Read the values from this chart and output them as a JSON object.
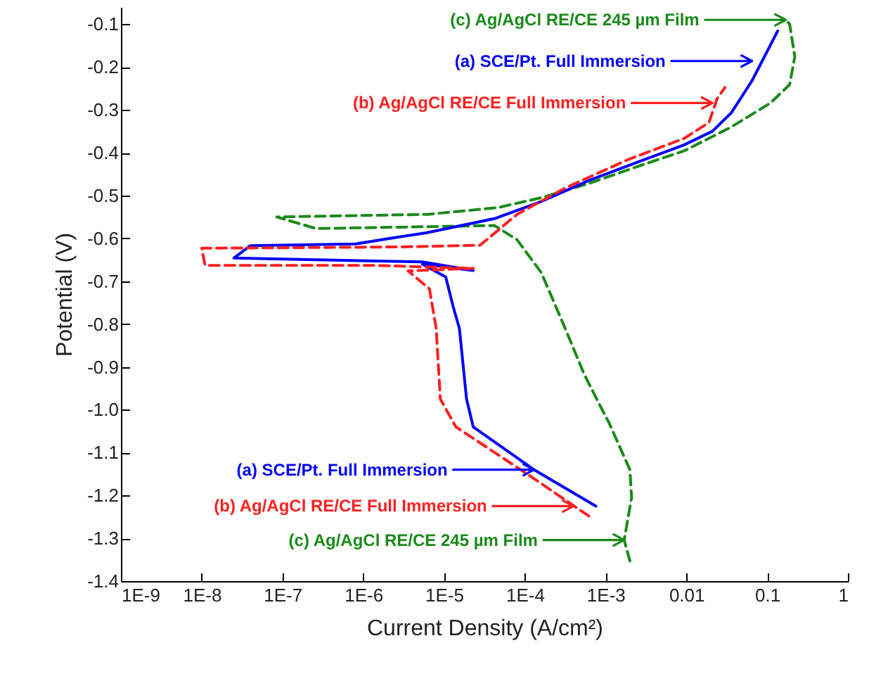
{
  "chart_data": {
    "type": "line",
    "xlabel": "Current Density (A/cm²)",
    "ylabel": "Potential (V)",
    "log": "x",
    "xlim": [
      1e-09,
      1
    ],
    "ylim": [
      -1.4,
      -0.06
    ],
    "xticks": [
      {
        "value": 1e-09,
        "label": "1E-9"
      },
      {
        "value": 1e-08,
        "label": "1E-8"
      },
      {
        "value": 1e-07,
        "label": "1E-7"
      },
      {
        "value": 1e-06,
        "label": "1E-6"
      },
      {
        "value": 1e-05,
        "label": "1E-5"
      },
      {
        "value": 0.0001,
        "label": "1E-4"
      },
      {
        "value": 0.001,
        "label": "1E-3"
      },
      0.01,
      0.1,
      1
    ],
    "yticks": [
      -0.1,
      -0.2,
      -0.3,
      -0.4,
      -0.5,
      -0.6,
      -0.7,
      -0.8,
      -0.9,
      {
        "value": -1.0,
        "label": "-1.0"
      },
      -1.1,
      -1.2,
      -1.3,
      -1.4
    ],
    "series": [
      {
        "color": "#1a8a1a",
        "line_style": "dashed",
        "x": [
          0.002,
          0.0017,
          0.0021,
          0.002,
          0.0011,
          0.0008,
          0.00054,
          0.0003,
          0.00016,
          8e-05,
          4.2e-05,
          2.6e-07,
          8.5e-08,
          6.2e-06,
          4.7e-05,
          0.00016,
          0.00062,
          0.0025,
          0.0093,
          0.036,
          0.11,
          0.19,
          0.22,
          0.19,
          0.17
        ],
        "values": [
          -1.353,
          -1.304,
          -1.205,
          -1.14,
          -1.03,
          -0.98,
          -0.916,
          -0.8,
          -0.68,
          -0.603,
          -0.57,
          -0.577,
          -0.55,
          -0.544,
          -0.528,
          -0.505,
          -0.472,
          -0.432,
          -0.396,
          -0.34,
          -0.284,
          -0.241,
          -0.176,
          -0.1,
          -0.09
        ]
      },
      {
        "color": "#0000ff",
        "line_style": "solid",
        "x": [
          0.00076,
          0.00013,
          2.3e-05,
          1.9e-05,
          1.55e-05,
          1.3e-05,
          1.05e-05,
          5.4e-06,
          2.3e-05,
          5.4e-06,
          2.5e-08,
          4e-08,
          8e-07,
          2.7e-06,
          6e-06,
          4.2e-05,
          0.00016,
          0.00062,
          0.0025,
          0.0093,
          0.021,
          0.036,
          0.065,
          0.135
        ],
        "values": [
          -1.225,
          -1.14,
          -1.04,
          -0.975,
          -0.81,
          -0.76,
          -0.69,
          -0.66,
          -0.675,
          -0.655,
          -0.646,
          -0.617,
          -0.613,
          -0.597,
          -0.587,
          -0.554,
          -0.514,
          -0.465,
          -0.422,
          -0.382,
          -0.35,
          -0.307,
          -0.232,
          -0.116
        ]
      },
      {
        "color": "#ff2020",
        "line_style": "dashed",
        "x": [
          0.00062,
          0.000107,
          1.4e-05,
          9e-06,
          8e-06,
          6.6e-06,
          3.6e-06,
          2.3e-05,
          1.35e-06,
          1.1e-08,
          1e-08,
          2.7e-06,
          2.8e-05,
          8e-05,
          0.00032,
          0.0019,
          0.0093,
          0.019,
          0.024,
          0.03
        ],
        "values": [
          -1.248,
          -1.15,
          -1.04,
          -0.975,
          -0.81,
          -0.718,
          -0.676,
          -0.67,
          -0.663,
          -0.663,
          -0.623,
          -0.62,
          -0.616,
          -0.544,
          -0.482,
          -0.416,
          -0.367,
          -0.33,
          -0.274,
          -0.248
        ]
      }
    ],
    "annotations": [
      {
        "text": "(c) Ag/AgCl RE/CE 245 µm Film",
        "x": 0.17,
        "y": -0.09
      },
      {
        "text": "(a) SCE/Pt. Full Immersion",
        "x": 0.065,
        "y": -0.186
      },
      {
        "text": "(b) Ag/AgCl RE/CE Full Immersion",
        "x": 0.021,
        "y": -0.284
      },
      {
        "text": "(c) Ag/AgCl RE/CE 245 µm Film",
        "x": 0.0017,
        "y": -1.304
      },
      {
        "text": "(a) SCE/Pt. Full Immersion",
        "x": 0.00013,
        "y": -1.14
      },
      {
        "text": "(b) Ag/AgCl RE/CE Full Immersion",
        "x": 0.0004,
        "y": -1.225
      }
    ]
  }
}
